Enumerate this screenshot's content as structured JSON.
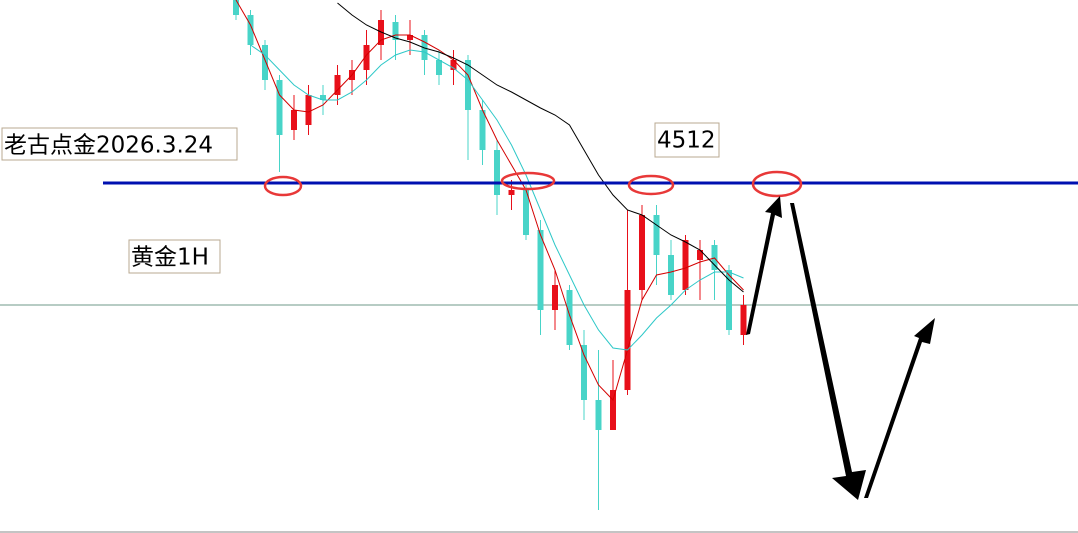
{
  "chart_data": {
    "type": "candlestick",
    "annotations": [
      "老古点金2026.3.24",
      "黄金1H"
    ],
    "level": 4512,
    "reference_line": 4390,
    "ylim": [
      4162,
      4695
    ],
    "up_color": "#e8101a",
    "down_color": "#48d4c8",
    "level_color": "#0010b0",
    "open": [
      4695,
      4680,
      4650,
      4615,
      4565,
      4570,
      4600,
      4600,
      4615,
      4625,
      4650,
      4673,
      4655,
      4660,
      4635,
      4625,
      4635,
      4585,
      4545,
      4500,
      4505,
      4465,
      4385,
      4405,
      4350,
      4295,
      4265,
      4305,
      4405,
      4480,
      4440,
      4405,
      4435,
      4450,
      4425,
      4360
    ],
    "high": [
      4695,
      4685,
      4655,
      4620,
      4600,
      4610,
      4610,
      4630,
      4635,
      4665,
      4685,
      4680,
      4675,
      4665,
      4645,
      4645,
      4640,
      4595,
      4555,
      4515,
      4510,
      4475,
      4425,
      4410,
      4365,
      4345,
      4335,
      4485,
      4490,
      4490,
      4455,
      4460,
      4455,
      4455,
      4430,
      4400
    ],
    "low": [
      4675,
      4640,
      4605,
      4523,
      4555,
      4560,
      4580,
      4590,
      4600,
      4610,
      4635,
      4635,
      4640,
      4620,
      4610,
      4610,
      4535,
      4530,
      4480,
      4485,
      4455,
      4360,
      4365,
      4345,
      4275,
      4185,
      4265,
      4300,
      4395,
      4410,
      4395,
      4400,
      4395,
      4395,
      4360,
      4350
    ],
    "close": [
      4680,
      4650,
      4615,
      4560,
      4585,
      4600,
      4595,
      4620,
      4625,
      4650,
      4675,
      4655,
      4660,
      4635,
      4620,
      4635,
      4585,
      4545,
      4500,
      4505,
      4460,
      4385,
      4410,
      4350,
      4295,
      4265,
      4305,
      4405,
      4480,
      4440,
      4400,
      4455,
      4445,
      4425,
      4365,
      4390
    ],
    "series": [
      {
        "color": "#d40000",
        "values": [
          4695,
          4670,
          4635,
          4600,
          4585,
          4583,
          4590,
          4605,
          4620,
          4640,
          4655,
          4660,
          4660,
          4653,
          4645,
          4635,
          4620,
          4585,
          4555,
          4530,
          4505,
          4460,
          4425,
          4380,
          4340,
          4310,
          4295,
          4345,
          4395,
          4420,
          4423,
          4427,
          4433,
          4437,
          4420,
          4405
        ]
      },
      {
        "color": "#2ec8c8",
        "values": [
          null,
          4650,
          4640,
          4625,
          4610,
          4600,
          4595,
          4595,
          4603,
          4615,
          4630,
          4640,
          4645,
          4643,
          4635,
          4627,
          4615,
          4595,
          4575,
          4550,
          4520,
          4485,
          4450,
          4420,
          4390,
          4365,
          4347,
          4345,
          4360,
          4377,
          4390,
          4405,
          4415,
          4423,
          4423,
          4417
        ]
      },
      {
        "color": "#000000",
        "values": [
          null,
          null,
          null,
          null,
          null,
          null,
          null,
          4692,
          4680,
          4670,
          4663,
          4657,
          4653,
          4647,
          4643,
          4637,
          4630,
          4620,
          4610,
          4603,
          4595,
          4587,
          4580,
          4570,
          4545,
          4520,
          4500,
          4485,
          4480,
          4470,
          4460,
          4453,
          4445,
          4430,
          4415,
          4403
        ]
      }
    ]
  }
}
